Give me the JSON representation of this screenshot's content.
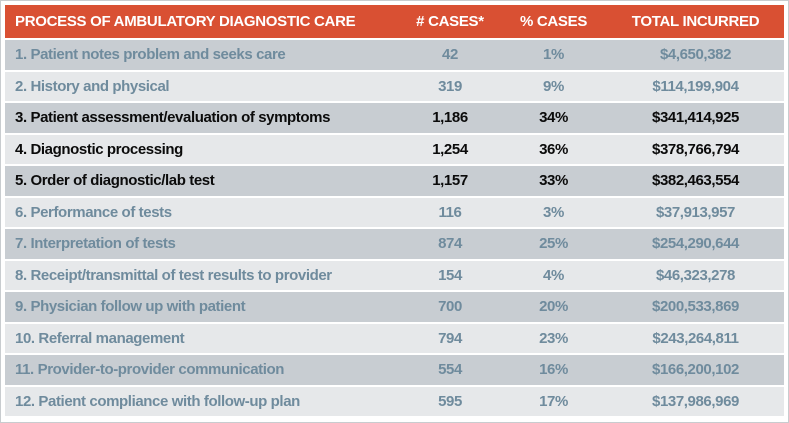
{
  "chart_data": {
    "type": "table",
    "title": "Process of Ambulatory Diagnostic Care",
    "columns": [
      "PROCESS OF AMBULATORY DIAGNOSTIC CARE",
      "# CASES*",
      "% CASES",
      "TOTAL INCURRED"
    ],
    "rows": [
      {
        "process": "1. Patient notes problem and seeks care",
        "cases": "42",
        "pct_cases": "1%",
        "total_incurred": "$4,650,382",
        "emphasized": false
      },
      {
        "process": "2. History and physical",
        "cases": "319",
        "pct_cases": "9%",
        "total_incurred": "$114,199,904",
        "emphasized": false
      },
      {
        "process": "3. Patient assessment/evaluation of symptoms",
        "cases": "1,186",
        "pct_cases": "34%",
        "total_incurred": "$341,414,925",
        "emphasized": true
      },
      {
        "process": "4. Diagnostic processing",
        "cases": "1,254",
        "pct_cases": "36%",
        "total_incurred": "$378,766,794",
        "emphasized": true
      },
      {
        "process": "5. Order of diagnostic/lab test",
        "cases": "1,157",
        "pct_cases": "33%",
        "total_incurred": "$382,463,554",
        "emphasized": true
      },
      {
        "process": "6. Performance of tests",
        "cases": "116",
        "pct_cases": "3%",
        "total_incurred": "$37,913,957",
        "emphasized": false
      },
      {
        "process": "7. Interpretation of tests",
        "cases": "874",
        "pct_cases": "25%",
        "total_incurred": "$254,290,644",
        "emphasized": false
      },
      {
        "process": "8. Receipt/transmittal of test results to provider",
        "cases": "154",
        "pct_cases": "4%",
        "total_incurred": "$46,323,278",
        "emphasized": false
      },
      {
        "process": "9. Physician follow up with patient",
        "cases": "700",
        "pct_cases": "20%",
        "total_incurred": "$200,533,869",
        "emphasized": false
      },
      {
        "process": "10. Referral management",
        "cases": "794",
        "pct_cases": "23%",
        "total_incurred": "$243,264,811",
        "emphasized": false
      },
      {
        "process": "11. Provider-to-provider communication",
        "cases": "554",
        "pct_cases": "16%",
        "total_incurred": "$166,200,102",
        "emphasized": false
      },
      {
        "process": "12. Patient compliance with follow-up plan",
        "cases": "595",
        "pct_cases": "17%",
        "total_incurred": "$137,986,969",
        "emphasized": false
      }
    ]
  },
  "colors": {
    "header_bg": "#D95033",
    "header_fg": "#FFFFFF",
    "row_dark": "#C8CDD2",
    "row_light": "#E6E8EA",
    "row_fg": "#6F8B9D",
    "emph_fg": "#0B0B0B",
    "border": "#C8CCCF"
  }
}
